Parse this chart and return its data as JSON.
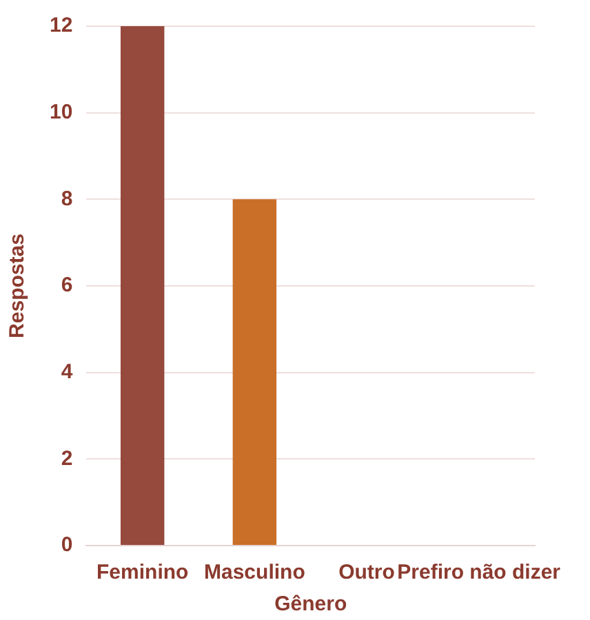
{
  "chart_data": {
    "type": "bar",
    "xlabel": "Gênero",
    "ylabel": "Respostas",
    "categories": [
      "Feminino",
      "Masculino",
      "Outro",
      "Prefiro não dizer"
    ],
    "values": [
      12,
      8,
      0,
      0
    ],
    "colors": [
      "#96493d",
      "#c96f28",
      "#d9a066",
      "#8a5a44"
    ],
    "ylim": [
      0,
      12
    ],
    "yticks": [
      0,
      2,
      4,
      6,
      8,
      10,
      12
    ],
    "grid": "y",
    "legend": false
  }
}
